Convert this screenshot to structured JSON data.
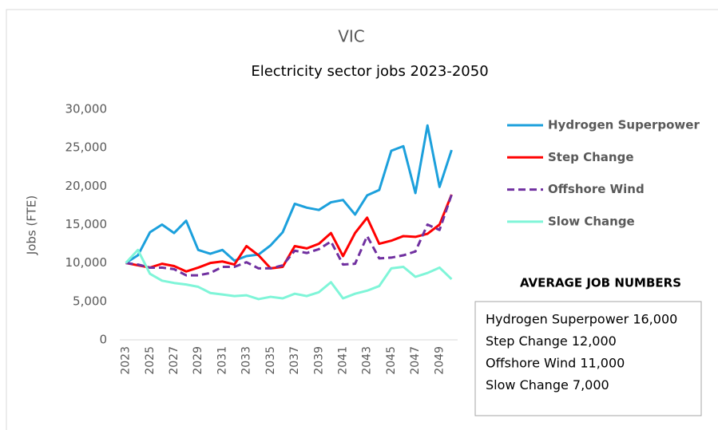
{
  "chart_data": {
    "type": "line",
    "title": "VIC",
    "subtitle": "Electricity sector jobs 2023-2050",
    "y_label": "Jobs (FTE)",
    "x": [
      2023,
      2024,
      2025,
      2026,
      2027,
      2028,
      2029,
      2030,
      2031,
      2032,
      2033,
      2034,
      2035,
      2036,
      2037,
      2038,
      2039,
      2040,
      2041,
      2042,
      2043,
      2044,
      2045,
      2046,
      2047,
      2048,
      2049,
      2050
    ],
    "xlim": [
      2022.5,
      2050.5
    ],
    "xticks": [
      2023,
      2025,
      2027,
      2029,
      2031,
      2033,
      2035,
      2037,
      2039,
      2041,
      2043,
      2045,
      2047,
      2049
    ],
    "ylim": [
      0,
      30000
    ],
    "yticks": [
      0,
      {
        "value": 5000,
        "label": "5,000"
      },
      {
        "value": 10000,
        "label": "10,000"
      },
      {
        "value": 15000,
        "label": "15,000"
      },
      {
        "value": 20000,
        "label": "20,000"
      },
      {
        "value": 25000,
        "label": "25,000"
      },
      {
        "value": 30000,
        "label": "30,000"
      }
    ],
    "grid": false,
    "legend": "right",
    "series": [
      {
        "name": "Hydrogen Superpower",
        "color": "#1ca0dc",
        "dashed": false,
        "values": [
          10000,
          11000,
          14000,
          15000,
          13900,
          15500,
          11700,
          11200,
          11700,
          10300,
          10900,
          11100,
          12300,
          14000,
          17700,
          17200,
          16900,
          17900,
          18200,
          16300,
          18800,
          19500,
          24600,
          25200,
          19100,
          27900,
          19900,
          24700
        ]
      },
      {
        "name": "Step Change",
        "color": "#ff0000",
        "dashed": false,
        "values": [
          10000,
          9700,
          9400,
          9900,
          9600,
          8900,
          9400,
          10000,
          10200,
          9800,
          12200,
          11000,
          9300,
          9500,
          12200,
          11900,
          12500,
          13900,
          10900,
          13900,
          15900,
          12500,
          12900,
          13500,
          13400,
          13800,
          15000,
          18900
        ]
      },
      {
        "name": "Offshore Wind",
        "color": "#7030a0",
        "dashed": true,
        "values": [
          10000,
          9800,
          9400,
          9400,
          9200,
          8400,
          8400,
          8700,
          9500,
          9500,
          10100,
          9300,
          9300,
          9700,
          11600,
          11300,
          11800,
          12800,
          9800,
          9900,
          13500,
          10600,
          10700,
          11000,
          11500,
          15000,
          14300,
          18900
        ]
      },
      {
        "name": "Slow Change",
        "color": "#7ff5d8",
        "dashed": false,
        "values": [
          10000,
          11700,
          8600,
          7700,
          7400,
          7200,
          6900,
          6100,
          5900,
          5700,
          5800,
          5300,
          5600,
          5400,
          6000,
          5700,
          6200,
          7500,
          5400,
          6000,
          6400,
          7000,
          9300,
          9500,
          8200,
          8700,
          9400,
          7900
        ]
      }
    ],
    "annotation": {
      "title": "AVERAGE JOB NUMBERS",
      "lines": [
        "Hydrogen Superpower 16,000",
        "Step Change 12,000",
        "Offshore Wind 11,000",
        "Slow Change 7,000"
      ]
    }
  }
}
